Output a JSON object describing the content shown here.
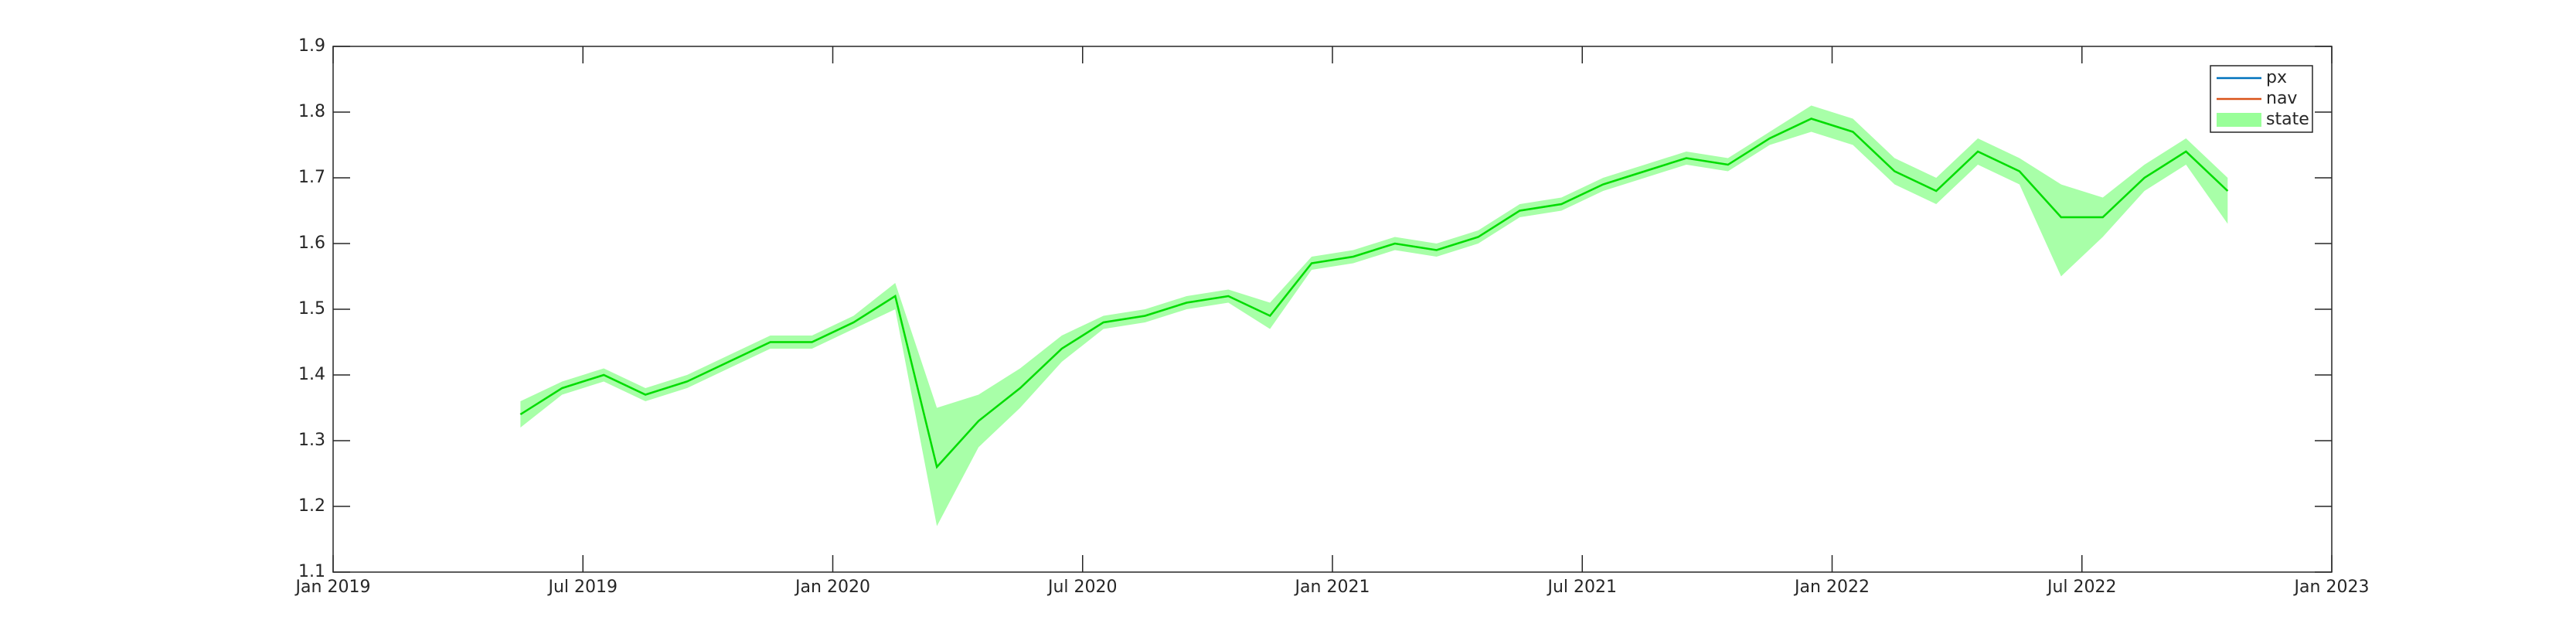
{
  "chart_data": {
    "type": "line",
    "x": [
      "2019-05",
      "2019-06",
      "2019-07",
      "2019-08",
      "2019-09",
      "2019-10",
      "2019-11",
      "2019-12",
      "2020-01",
      "2020-02",
      "2020-03",
      "2020-04",
      "2020-05",
      "2020-06",
      "2020-07",
      "2020-08",
      "2020-09",
      "2020-10",
      "2020-11",
      "2020-12",
      "2021-01",
      "2021-02",
      "2021-03",
      "2021-04",
      "2021-05",
      "2021-06",
      "2021-07",
      "2021-08",
      "2021-09",
      "2021-10",
      "2021-11",
      "2021-12",
      "2022-01",
      "2022-02",
      "2022-03",
      "2022-04",
      "2022-05",
      "2022-06",
      "2022-07",
      "2022-08",
      "2022-09",
      "2022-10"
    ],
    "series": [
      {
        "name": "px",
        "color": "#0072bd",
        "values": [
          1.34,
          1.38,
          1.4,
          1.37,
          1.39,
          1.42,
          1.45,
          1.45,
          1.48,
          1.52,
          1.26,
          1.33,
          1.38,
          1.44,
          1.48,
          1.49,
          1.51,
          1.52,
          1.49,
          1.57,
          1.58,
          1.6,
          1.59,
          1.61,
          1.65,
          1.66,
          1.69,
          1.71,
          1.73,
          1.72,
          1.76,
          1.79,
          1.77,
          1.71,
          1.68,
          1.74,
          1.71,
          1.64,
          1.64,
          1.7,
          1.74,
          1.68
        ]
      },
      {
        "name": "nav",
        "color": "#d95319",
        "values": [
          1.34,
          1.38,
          1.4,
          1.37,
          1.39,
          1.42,
          1.45,
          1.45,
          1.48,
          1.52,
          1.26,
          1.33,
          1.38,
          1.44,
          1.48,
          1.49,
          1.51,
          1.52,
          1.49,
          1.57,
          1.58,
          1.6,
          1.59,
          1.61,
          1.65,
          1.66,
          1.69,
          1.71,
          1.73,
          1.72,
          1.76,
          1.79,
          1.77,
          1.71,
          1.68,
          1.74,
          1.71,
          1.64,
          1.64,
          1.7,
          1.74,
          1.68
        ]
      },
      {
        "name": "state",
        "color": "#00dd00",
        "band_color": "#99ff99",
        "values": [
          1.34,
          1.38,
          1.4,
          1.37,
          1.39,
          1.42,
          1.45,
          1.45,
          1.48,
          1.52,
          1.26,
          1.33,
          1.38,
          1.44,
          1.48,
          1.49,
          1.51,
          1.52,
          1.49,
          1.57,
          1.58,
          1.6,
          1.59,
          1.61,
          1.65,
          1.66,
          1.69,
          1.71,
          1.73,
          1.72,
          1.76,
          1.79,
          1.77,
          1.71,
          1.68,
          1.74,
          1.71,
          1.64,
          1.64,
          1.7,
          1.74,
          1.68
        ],
        "lower": [
          1.32,
          1.37,
          1.39,
          1.36,
          1.38,
          1.41,
          1.44,
          1.44,
          1.47,
          1.5,
          1.17,
          1.29,
          1.35,
          1.42,
          1.47,
          1.48,
          1.5,
          1.51,
          1.47,
          1.56,
          1.57,
          1.59,
          1.58,
          1.6,
          1.64,
          1.65,
          1.68,
          1.7,
          1.72,
          1.71,
          1.75,
          1.77,
          1.75,
          1.69,
          1.66,
          1.72,
          1.69,
          1.55,
          1.61,
          1.68,
          1.72,
          1.63
        ],
        "upper": [
          1.36,
          1.39,
          1.41,
          1.38,
          1.4,
          1.43,
          1.46,
          1.46,
          1.49,
          1.54,
          1.35,
          1.37,
          1.41,
          1.46,
          1.49,
          1.5,
          1.52,
          1.53,
          1.51,
          1.58,
          1.59,
          1.61,
          1.6,
          1.62,
          1.66,
          1.67,
          1.7,
          1.72,
          1.74,
          1.73,
          1.77,
          1.81,
          1.79,
          1.73,
          1.7,
          1.76,
          1.73,
          1.69,
          1.67,
          1.72,
          1.76,
          1.7
        ]
      }
    ],
    "xlim": [
      "2019-01",
      "2023-01"
    ],
    "xticks": [
      {
        "value": "2019-01",
        "label": "Jan 2019"
      },
      {
        "value": "2019-07",
        "label": "Jul 2019"
      },
      {
        "value": "2020-01",
        "label": "Jan 2020"
      },
      {
        "value": "2020-07",
        "label": "Jul 2020"
      },
      {
        "value": "2021-01",
        "label": "Jan 2021"
      },
      {
        "value": "2021-07",
        "label": "Jul 2021"
      },
      {
        "value": "2022-01",
        "label": "Jan 2022"
      },
      {
        "value": "2022-07",
        "label": "Jul 2022"
      },
      {
        "value": "2023-01",
        "label": "Jan 2023"
      }
    ],
    "ylim": [
      1.1,
      1.9
    ],
    "yticks": [
      1.1,
      1.2,
      1.3,
      1.4,
      1.5,
      1.6,
      1.7,
      1.8,
      1.9
    ],
    "grid": false,
    "legend": "northeast"
  }
}
